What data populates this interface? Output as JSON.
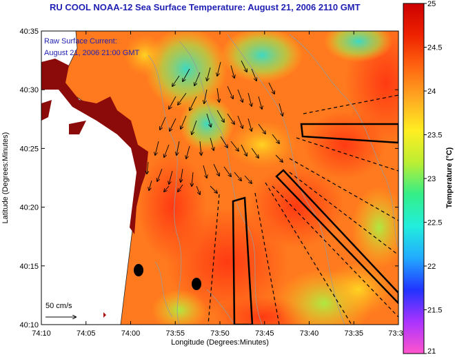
{
  "title": "RU COOL  NOAA-12  Sea Surface Temperature:  August 21, 2006 2110 GMT",
  "annotation": {
    "line1": "Raw Surface Current:",
    "line2": "August 21, 2006 21:00 GMT"
  },
  "axes": {
    "xlabel": "Longitude (Degrees:Minutes)",
    "ylabel": "Latitude (Degrees:Minutes)",
    "xticks": [
      "74:10",
      "74:05",
      "74:00",
      "73:55",
      "73:50",
      "73:45",
      "73:40",
      "73:35",
      "73:3"
    ],
    "yticks": [
      "40:35",
      "40:30",
      "40:25",
      "40:20",
      "40:15",
      "40:10"
    ]
  },
  "colorbar": {
    "label": "Temperature (°C)",
    "ticks": [
      "25",
      "24.5",
      "24",
      "23.5",
      "23",
      "22.5",
      "22",
      "21.5",
      "21"
    ],
    "min": 21,
    "max": 25,
    "colors": [
      "#ff55cc",
      "#aa33ff",
      "#2233ff",
      "#22aaff",
      "#22eedd",
      "#33ee88",
      "#bbee33",
      "#ffee22",
      "#ffaa22",
      "#ff6611",
      "#ee2200",
      "#cc0000"
    ]
  },
  "scale_bar": {
    "label": "50 cm/s"
  },
  "colors": {
    "title": "#1f1fb4",
    "land": "#ffffff",
    "masked_land": "#8b0a0a",
    "markers": "#000000"
  }
}
